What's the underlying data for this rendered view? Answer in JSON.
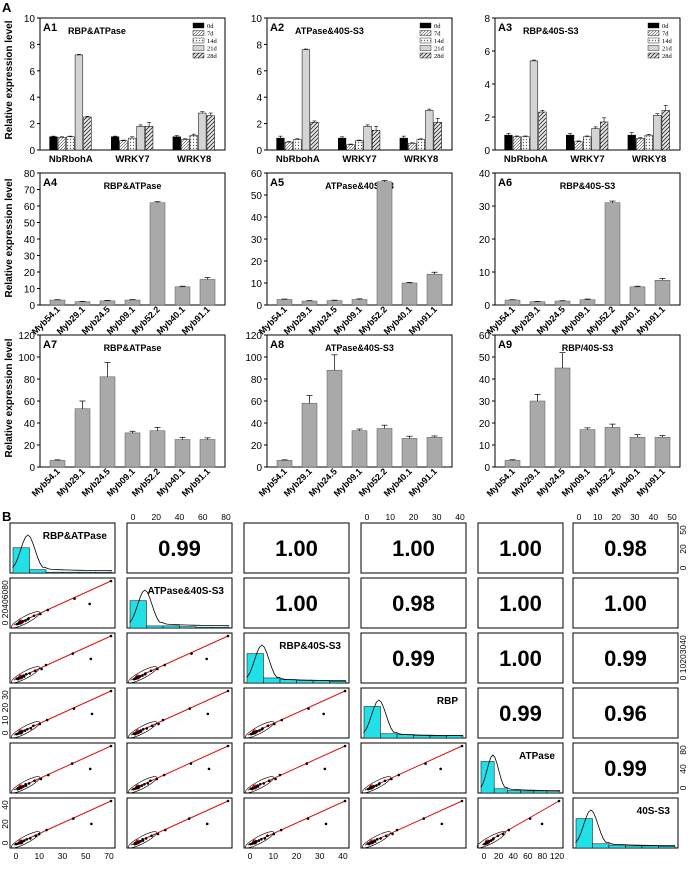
{
  "figure": {
    "section_a_label": "A",
    "section_b_label": "B",
    "ylabel": "Relative expression level"
  },
  "legend": {
    "entries": [
      "0d",
      "7d",
      "14d",
      "21d",
      "28d"
    ]
  },
  "chart_data": [
    {
      "id": "A1",
      "type": "bar",
      "title": "RBP&ATPase",
      "categories": [
        "NbRbohA",
        "WRKY7",
        "WRKY8"
      ],
      "ylim": [
        0,
        10
      ],
      "yticks": [
        0,
        2,
        4,
        6,
        8,
        10
      ],
      "series": [
        {
          "name": "0d",
          "values": [
            1.0,
            1.0,
            1.0
          ]
        },
        {
          "name": "7d",
          "values": [
            0.95,
            0.7,
            0.8
          ]
        },
        {
          "name": "14d",
          "values": [
            1.0,
            0.9,
            1.1
          ]
        },
        {
          "name": "21d",
          "values": [
            7.2,
            1.8,
            2.8
          ]
        },
        {
          "name": "28d",
          "values": [
            2.5,
            1.8,
            2.6
          ]
        }
      ],
      "errors": [
        [
          0.05,
          0.05,
          0.1
        ],
        [
          0.05,
          0.05,
          0.05
        ],
        [
          0.05,
          0.1,
          0.1
        ],
        [
          0.05,
          0.1,
          0.1
        ],
        [
          0.05,
          0.3,
          0.2
        ]
      ]
    },
    {
      "id": "A2",
      "type": "bar",
      "title": "ATPase&40S-S3",
      "categories": [
        "NbRbohA",
        "WRKY7",
        "WRKY8"
      ],
      "ylim": [
        0,
        10
      ],
      "yticks": [
        0,
        2,
        4,
        6,
        8,
        10
      ],
      "series": [
        {
          "name": "0d",
          "values": [
            0.9,
            0.9,
            0.9
          ]
        },
        {
          "name": "7d",
          "values": [
            0.6,
            0.4,
            0.5
          ]
        },
        {
          "name": "14d",
          "values": [
            0.8,
            0.7,
            0.8
          ]
        },
        {
          "name": "21d",
          "values": [
            7.6,
            1.8,
            3.0
          ]
        },
        {
          "name": "28d",
          "values": [
            2.1,
            1.5,
            2.1
          ]
        }
      ],
      "errors": [
        [
          0.15,
          0.1,
          0.15
        ],
        [
          0.05,
          0.05,
          0.05
        ],
        [
          0.05,
          0.05,
          0.05
        ],
        [
          0.05,
          0.1,
          0.1
        ],
        [
          0.1,
          0.3,
          0.3
        ]
      ]
    },
    {
      "id": "A3",
      "type": "bar",
      "title": "RBP&40S-S3",
      "categories": [
        "NbRbohA",
        "WRKY7",
        "WRKY8"
      ],
      "ylim": [
        0,
        8
      ],
      "yticks": [
        0,
        2,
        4,
        6,
        8
      ],
      "series": [
        {
          "name": "0d",
          "values": [
            0.9,
            0.9,
            0.9
          ]
        },
        {
          "name": "7d",
          "values": [
            0.8,
            0.5,
            0.7
          ]
        },
        {
          "name": "14d",
          "values": [
            0.8,
            0.8,
            0.9
          ]
        },
        {
          "name": "21d",
          "values": [
            5.4,
            1.3,
            2.1
          ]
        },
        {
          "name": "28d",
          "values": [
            2.3,
            1.7,
            2.4
          ]
        }
      ],
      "errors": [
        [
          0.1,
          0.1,
          0.15
        ],
        [
          0.05,
          0.05,
          0.05
        ],
        [
          0.05,
          0.05,
          0.05
        ],
        [
          0.05,
          0.1,
          0.1
        ],
        [
          0.1,
          0.25,
          0.3
        ]
      ]
    },
    {
      "id": "A4",
      "type": "bar",
      "title": "RBP&ATPase",
      "categories": [
        "Myb54.1",
        "Myb29.1",
        "Myb24.5",
        "Myb09.1",
        "Myb52.2",
        "Myb40.1",
        "Myb91.1"
      ],
      "ylim": [
        0,
        80
      ],
      "yticks": [
        0,
        10,
        20,
        30,
        40,
        50,
        60,
        70,
        80
      ],
      "values": [
        3.0,
        2.0,
        2.5,
        3.0,
        62,
        11,
        15.5
      ],
      "errors": [
        0.2,
        0.2,
        0.3,
        0.3,
        0.6,
        0.4,
        1.2
      ]
    },
    {
      "id": "A5",
      "type": "bar",
      "title": "ATPase&40S-S3",
      "categories": [
        "Myb54.1",
        "Myb29.1",
        "Myb24.5",
        "Myb09.1",
        "Myb52.2",
        "Myb40.1",
        "Myb91.1"
      ],
      "ylim": [
        0,
        60
      ],
      "yticks": [
        0,
        10,
        20,
        30,
        40,
        50,
        60
      ],
      "values": [
        2.5,
        1.8,
        2.0,
        2.5,
        56,
        10,
        14
      ],
      "errors": [
        0.2,
        0.2,
        0.2,
        0.3,
        0.6,
        0.3,
        0.9
      ]
    },
    {
      "id": "A6",
      "type": "bar",
      "title": "RBP&40S-S3",
      "categories": [
        "Myb54.1",
        "Myb29.1",
        "Myb24.5",
        "Myb09.1",
        "Myb52.2",
        "Myb40.1",
        "Myb91.1"
      ],
      "ylim": [
        0,
        40
      ],
      "yticks": [
        0,
        10,
        20,
        30,
        40
      ],
      "values": [
        1.5,
        1.0,
        1.2,
        1.6,
        31,
        5.5,
        7.5
      ],
      "errors": [
        0.1,
        0.1,
        0.1,
        0.2,
        0.5,
        0.2,
        0.5
      ]
    },
    {
      "id": "A7",
      "type": "bar",
      "title": "RBP&ATPase",
      "categories": [
        "Myb54.1",
        "Myb29.1",
        "Myb24.5",
        "Myb09.1",
        "Myb52.2",
        "Myb40.1",
        "Myb91.1"
      ],
      "ylim": [
        0,
        120
      ],
      "yticks": [
        0,
        20,
        40,
        60,
        80,
        100,
        120
      ],
      "values": [
        6,
        53,
        82,
        31,
        33,
        25,
        25
      ],
      "errors": [
        0.5,
        7,
        13,
        1.5,
        3,
        2,
        1.5
      ]
    },
    {
      "id": "A8",
      "type": "bar",
      "title": "ATPase&40S-S3",
      "categories": [
        "Myb54.1",
        "Myb29.1",
        "Myb24.5",
        "Myb09.1",
        "Myb52.2",
        "Myb40.1",
        "Myb91.1"
      ],
      "ylim": [
        0,
        120
      ],
      "yticks": [
        0,
        20,
        40,
        60,
        80,
        100,
        120
      ],
      "values": [
        6,
        58,
        88,
        33,
        35,
        26,
        27
      ],
      "errors": [
        0.5,
        7,
        14,
        1.5,
        3,
        2,
        1.2
      ]
    },
    {
      "id": "A9",
      "type": "bar",
      "title": "RBP/40S-S3",
      "categories": [
        "Myb54.1",
        "Myb29.1",
        "Myb24.5",
        "Myb09.1",
        "Myb52.2",
        "Myb40.1",
        "Myb91.1"
      ],
      "ylim": [
        0,
        60
      ],
      "yticks": [
        0,
        10,
        20,
        30,
        40,
        50,
        60
      ],
      "values": [
        3,
        30,
        45,
        17,
        18,
        13.5,
        13.5
      ],
      "errors": [
        0.3,
        3,
        7,
        0.8,
        1.5,
        1.2,
        0.8
      ]
    },
    {
      "id": "B",
      "type": "scatter-matrix",
      "variables": [
        "RBP&ATPase",
        "ATPase&40S-S3",
        "RBP&40S-S3",
        "RBP",
        "ATPase",
        "40S-S3"
      ],
      "correlations": [
        [
          "",
          "0.99",
          "1.00",
          "1.00",
          "1.00",
          "0.98"
        ],
        [
          "",
          "",
          "1.00",
          "0.98",
          "1.00",
          "1.00"
        ],
        [
          "",
          "",
          "",
          "0.99",
          "1.00",
          "0.99"
        ],
        [
          "",
          "",
          "",
          "",
          "0.99",
          "0.96"
        ],
        [
          "",
          "",
          "",
          "",
          "",
          "0.99"
        ],
        [
          "",
          "",
          "",
          "",
          "",
          ""
        ]
      ],
      "top_axis_ticks": {
        "2": [
          "0",
          "20",
          "40",
          "60",
          "80"
        ],
        "4": [
          "0",
          "10",
          "20",
          "30",
          "40"
        ],
        "6": [
          "0",
          "10",
          "20",
          "30",
          "40",
          "50"
        ]
      },
      "bottom_axis_ticks": {
        "1": [
          "0",
          "10",
          "30",
          "50",
          "70"
        ],
        "3": [
          "0",
          "10",
          "20",
          "30",
          "40"
        ],
        "5": [
          "0",
          "20",
          "40",
          "60",
          "80",
          "120"
        ]
      },
      "left_axis_ticks": {
        "2": [
          "0",
          "20",
          "40",
          "60",
          "80"
        ],
        "4": [
          "0",
          "10",
          "20",
          "30"
        ],
        "6": [
          "0",
          "20",
          "40"
        ]
      },
      "right_axis_ticks": {
        "1": [
          "0",
          "20",
          "50"
        ],
        "3": [
          "0",
          "10",
          "20",
          "30",
          "40"
        ],
        "5": [
          "0",
          "40",
          "80"
        ]
      },
      "histograms": [
        [
          0.6,
          0.08,
          0.02,
          0.02,
          0.02,
          0.02
        ],
        [
          0.65,
          0.05,
          0.05,
          0.03,
          0.02,
          0.02
        ],
        [
          0.7,
          0.12,
          0.08,
          0.06,
          0.06,
          0.04
        ],
        [
          0.75,
          0.1,
          0.08,
          0.06,
          0.05,
          0.06
        ],
        [
          0.75,
          0.1,
          0.06,
          0.05,
          0.05,
          0.03
        ],
        [
          0.7,
          0.1,
          0.07,
          0.05,
          0.05,
          0.04
        ]
      ],
      "points": [
        [
          0.02,
          0.02
        ],
        [
          0.03,
          0.03
        ],
        [
          0.04,
          0.04
        ],
        [
          0.05,
          0.05
        ],
        [
          0.06,
          0.06
        ],
        [
          0.08,
          0.08
        ],
        [
          0.1,
          0.1
        ],
        [
          0.12,
          0.13
        ],
        [
          0.15,
          0.15
        ],
        [
          0.2,
          0.21
        ],
        [
          0.26,
          0.25
        ],
        [
          0.33,
          0.34
        ],
        [
          0.6,
          0.6
        ],
        [
          0.78,
          0.48
        ],
        [
          1.0,
          1.0
        ]
      ]
    }
  ]
}
